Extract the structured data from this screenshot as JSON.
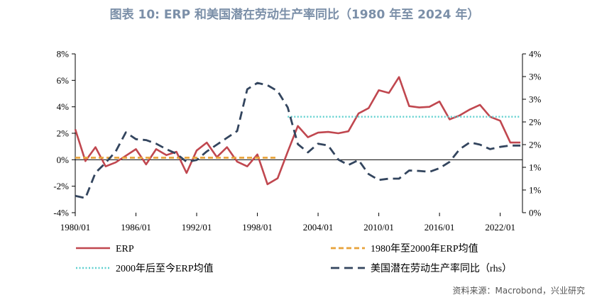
{
  "chart_data": {
    "type": "line",
    "title": "图表 10: ERP 和美国潜在劳动生产率同比（1980 年至 2024 年）",
    "source": "资料来源：Macrobond，兴业研究",
    "x_tick_labels": [
      "1980/01",
      "1986/01",
      "1992/01",
      "1998/01",
      "2004/01",
      "2010/01",
      "2016/01",
      "2022/01"
    ],
    "x_tick_values": [
      1980,
      1986,
      1992,
      1998,
      2004,
      2010,
      2016,
      2022
    ],
    "xlim": [
      1980,
      2024.2
    ],
    "y_left": {
      "min": -4,
      "max": 8,
      "step": 2,
      "tick_labels": [
        "-4%",
        "-2%",
        "0%",
        "2%",
        "4%",
        "6%",
        "8%"
      ]
    },
    "y_right": {
      "min": 0.5,
      "max": 4,
      "step": 0.5,
      "tick_labels": [
        "0%",
        "1%",
        "1%",
        "2%",
        "2%",
        "3%",
        "3%",
        "4%"
      ]
    },
    "grid": false,
    "legend_position": "bottom",
    "series": [
      {
        "name": "ERP",
        "axis": "left",
        "style": "solid",
        "color": "#c0474f",
        "x": [
          1980.0,
          1981.0,
          1982.0,
          1983.0,
          1984.0,
          1985.0,
          1986.0,
          1987.0,
          1988.0,
          1989.0,
          1990.0,
          1991.0,
          1992.0,
          1993.0,
          1994.0,
          1995.0,
          1996.0,
          1997.0,
          1998.0,
          1999.0,
          2000.0,
          2001.0,
          2002.0,
          2003.0,
          2004.0,
          2005.0,
          2006.0,
          2007.0,
          2008.0,
          2009.0,
          2010.0,
          2011.0,
          2012.0,
          2013.0,
          2014.0,
          2015.0,
          2016.0,
          2017.0,
          2018.0,
          2019.0,
          2020.0,
          2021.0,
          2022.0,
          2023.0,
          2024.0
        ],
        "values": [
          2.3,
          -0.1,
          0.95,
          -0.5,
          -0.2,
          0.3,
          0.8,
          -0.35,
          0.8,
          0.35,
          0.6,
          -1.0,
          0.7,
          1.3,
          0.2,
          0.95,
          -0.15,
          -0.5,
          0.4,
          -1.85,
          -1.4,
          0.6,
          2.55,
          1.7,
          2.05,
          2.1,
          2.0,
          2.15,
          3.5,
          3.9,
          5.25,
          5.05,
          6.25,
          4.05,
          3.95,
          4.0,
          4.4,
          3.05,
          3.35,
          3.8,
          4.15,
          3.25,
          2.95,
          1.3,
          1.3
        ]
      },
      {
        "name": "1980年至2000年ERP均值",
        "axis": "left",
        "style": "dashed",
        "color": "#e8a23a",
        "x": [
          1980,
          2000
        ],
        "values": [
          0.15,
          0.15
        ]
      },
      {
        "name": "2000年后至今ERP均值",
        "axis": "left",
        "style": "dotted",
        "color": "#5fd0cf",
        "x": [
          2001,
          2024
        ],
        "values": [
          3.25,
          3.25
        ]
      },
      {
        "name": "美国潜在劳动生产率同比（rhs）",
        "axis": "right",
        "style": "dashed",
        "color": "#33455e",
        "x": [
          1980.0,
          1981.0,
          1982.0,
          1983.0,
          1984.0,
          1985.0,
          1986.0,
          1987.0,
          1988.0,
          1989.0,
          1990.0,
          1991.0,
          1992.0,
          1993.0,
          1994.0,
          1995.0,
          1996.0,
          1997.0,
          1998.0,
          1999.0,
          2000.0,
          2001.0,
          2002.0,
          2003.0,
          2004.0,
          2005.0,
          2006.0,
          2007.0,
          2008.0,
          2009.0,
          2010.0,
          2011.0,
          2012.0,
          2013.0,
          2014.0,
          2015.0,
          2016.0,
          2017.0,
          2018.0,
          2019.0,
          2020.0,
          2021.0,
          2022.0,
          2023.0,
          2024.0
        ],
        "values": [
          0.87,
          0.82,
          1.38,
          1.6,
          1.85,
          2.27,
          2.12,
          2.1,
          2.02,
          1.9,
          1.8,
          1.62,
          1.66,
          1.85,
          2.0,
          2.15,
          2.3,
          3.22,
          3.36,
          3.31,
          3.18,
          2.82,
          2.01,
          1.83,
          2.02,
          1.98,
          1.67,
          1.55,
          1.66,
          1.35,
          1.22,
          1.25,
          1.25,
          1.43,
          1.42,
          1.4,
          1.48,
          1.62,
          1.9,
          2.05,
          2.0,
          1.9,
          1.95,
          1.98,
          1.98
        ]
      }
    ]
  }
}
